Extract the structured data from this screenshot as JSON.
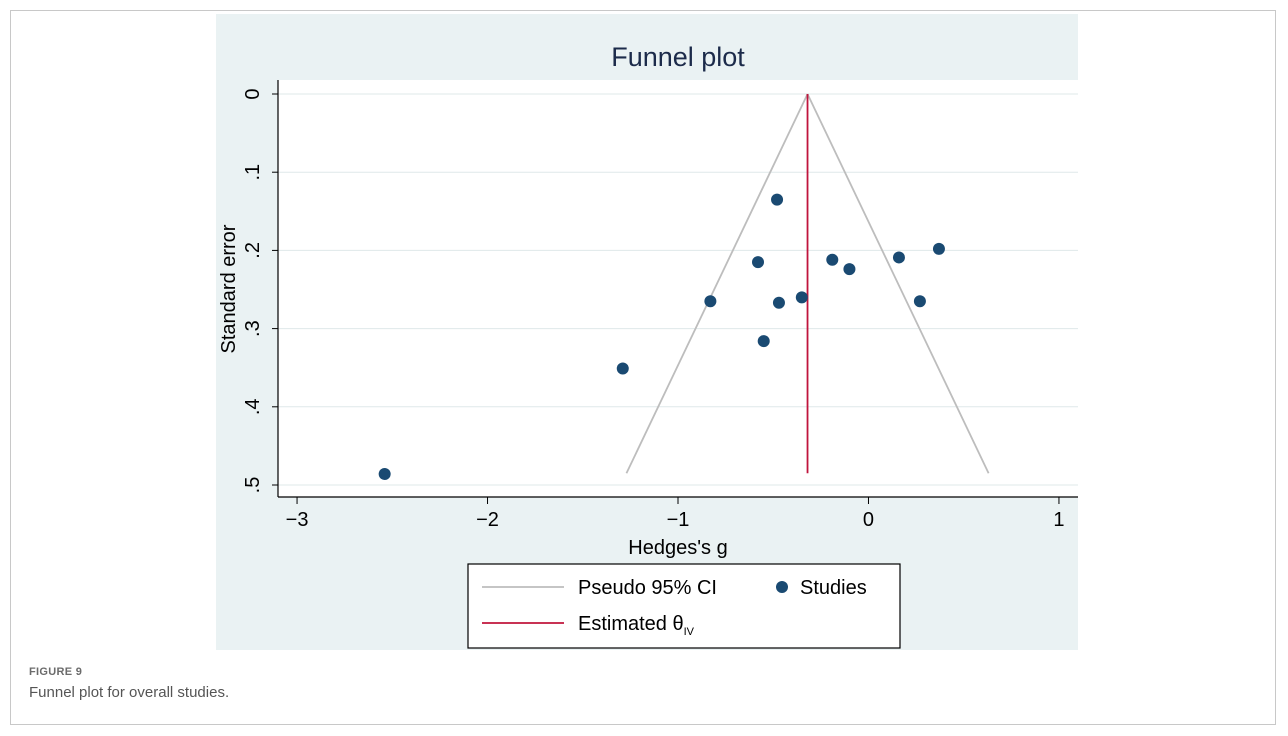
{
  "chart_data": {
    "type": "scatter",
    "title": "Funnel plot",
    "xlabel": "Hedges's g",
    "ylabel": "Standard error",
    "xlim": [
      -3.1,
      1.1
    ],
    "ylim": [
      0,
      0.5
    ],
    "y_reversed": true,
    "x_ticks": [
      -3,
      -2,
      -1,
      0,
      1
    ],
    "x_tick_labels": [
      "−3",
      "−2",
      "−1",
      "0",
      "1"
    ],
    "y_ticks": [
      0,
      0.1,
      0.2,
      0.3,
      0.4,
      0.5
    ],
    "y_tick_labels": [
      "0",
      ".1",
      ".2",
      ".3",
      ".4",
      ".5"
    ],
    "grid": true,
    "estimate": -0.32,
    "funnel_max_se": 0.485,
    "series": [
      {
        "name": "Studies",
        "points": [
          {
            "x": -0.48,
            "y": 0.135
          },
          {
            "x": -0.58,
            "y": 0.215
          },
          {
            "x": -0.19,
            "y": 0.212
          },
          {
            "x": -0.1,
            "y": 0.224
          },
          {
            "x": 0.16,
            "y": 0.209
          },
          {
            "x": 0.37,
            "y": 0.198
          },
          {
            "x": -0.83,
            "y": 0.265
          },
          {
            "x": -0.47,
            "y": 0.267
          },
          {
            "x": -0.35,
            "y": 0.26
          },
          {
            "x": 0.27,
            "y": 0.265
          },
          {
            "x": -0.55,
            "y": 0.316
          },
          {
            "x": -1.29,
            "y": 0.351
          },
          {
            "x": -2.54,
            "y": 0.486
          }
        ]
      }
    ],
    "legend": {
      "placement": "bottom",
      "ci_label": "Pseudo 95% CI",
      "studies_label": "Studies",
      "estimate_label": "Estimated θ",
      "estimate_subscript": "IV"
    },
    "colors": {
      "background": "#eaf2f3",
      "points": "#1a4a72",
      "ci_line": "#bdbdbd",
      "estimate_line": "#c0143c",
      "grid": "#ffffff"
    }
  },
  "caption": {
    "label": "FIGURE 9",
    "text": "Funnel plot for overall studies."
  }
}
